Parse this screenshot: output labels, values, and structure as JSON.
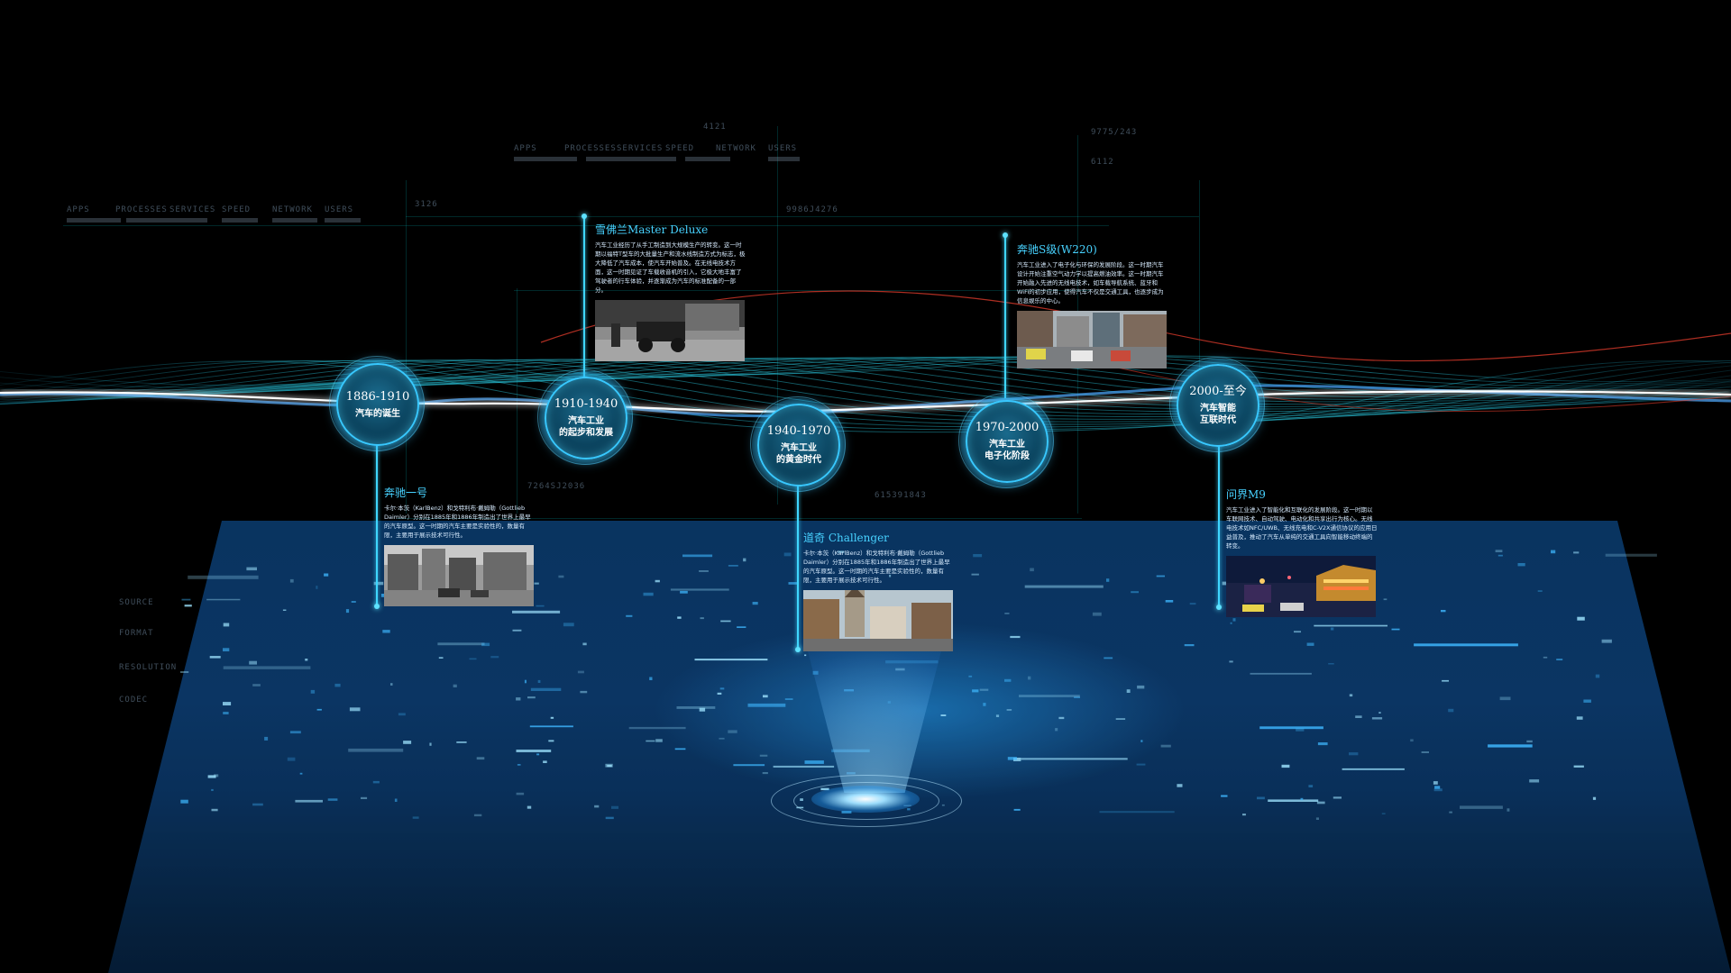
{
  "hud": {
    "tabs_left": [
      "APPS",
      "PROCESSES",
      "SERVICES",
      "SPEED",
      "NETWORK",
      "USERS"
    ],
    "tabs_center": [
      "APPS",
      "PROCESSES",
      "SERVICES",
      "SPEED",
      "NETWORK",
      "USERS"
    ],
    "numbers": [
      "3126",
      "4121",
      "6112",
      "9775/243",
      "9986J4276",
      "615391843",
      "7264SJ2036"
    ],
    "side_left": [
      "SOURCE",
      "FORMAT",
      "RESOLUTION",
      "CODEC"
    ]
  },
  "timeline": [
    {
      "year": "1886-1910",
      "name": "汽车的诞生"
    },
    {
      "year": "1910-1940",
      "name": "汽车工业\n的起步和发展"
    },
    {
      "year": "1940-1970",
      "name": "汽车工业\n的黄金时代"
    },
    {
      "year": "1970-2000",
      "name": "汽车工业\n电子化阶段"
    },
    {
      "year": "2000-至今",
      "name": "汽车智能\n互联时代"
    }
  ],
  "cards": {
    "benz_one": {
      "title": "奔驰一号",
      "text": "卡尔·本茨（KarlBenz）和戈特利布·戴姆勒（Gottlieb Daimler）分别在1885年和1886年制造出了世界上最早的汽车原型。这一时期的汽车主要是实验性的，数量有限，主要用于展示技术可行性。"
    },
    "cadillac": {
      "title": "雪佛兰Master Deluxe",
      "text": "汽车工业经历了从手工制造到大规模生产的转变。这一时期以福特T型车的大批量生产和流水线制造方式为标志，极大降低了汽车成本，使汽车开始普及。在无线电技术方面，这一时期见证了车载收音机的引入，它极大地丰富了驾驶者的行车体验，并逐渐成为汽车的标准配备的一部分。"
    },
    "dodge": {
      "title": "道奇 Challenger",
      "text": "卡尔·本茨（KarlBenz）和戈特利布·戴姆勒（Gottlieb Daimler）分别在1885年和1886年制造出了世界上最早的汽车原型。这一时期的汽车主要是实验性的，数量有限，主要用于展示技术可行性。"
    },
    "benz_s": {
      "title": "奔驰S级(W220)",
      "text": "汽车工业进入了电子化与环保的发展阶段。这一时期汽车设计开始注重空气动力学以提高燃油效率。这一时期汽车开始融入先进的无线电技术，如车载导航系统、蓝牙和WiFi的初步应用，使得汽车不仅是交通工具，也逐步成为信息娱乐的中心。"
    },
    "wenjie": {
      "title": "问界M9",
      "text": "汽车工业进入了智能化和互联化的发展阶段。这一时期以车联网技术、自动驾驶、电动化和共享出行为核心。无线电技术如NFC/UWB、无线充电和C-V2X通信协议的应用日益普及，推动了汽车从单纯的交通工具向智能移动终端的转变。"
    }
  },
  "colors": {
    "accent": "#47d2ff",
    "node_border": "#38c8ff",
    "floor": "#0d3b6e",
    "wave_red": "#d83a2a"
  }
}
